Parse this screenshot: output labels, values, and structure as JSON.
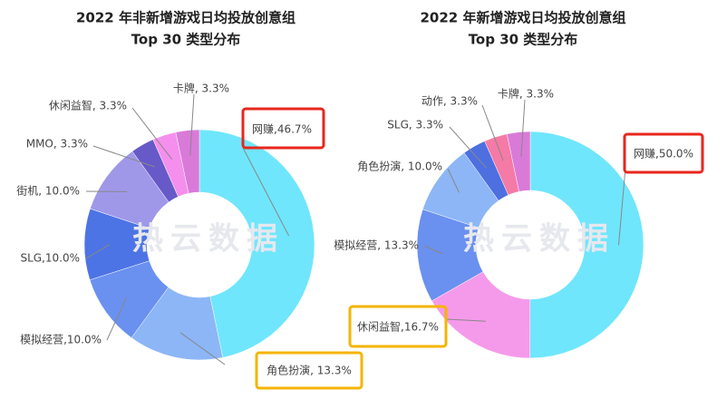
{
  "watermark": "热云数据",
  "chart_data": [
    {
      "type": "pie",
      "donut": true,
      "title": "2022 年非新增游戏日均投放创意组",
      "subtitle": "Top 30 类型分布",
      "labels": [
        "网赚,46.7%",
        "角色扮演, 13.3%",
        "模拟经营,10.0%",
        "SLG,10.0%",
        "街机, 10.0%",
        "MMO, 3.3%",
        "休闲益智, 3.3%",
        "卡牌, 3.3%"
      ],
      "values": [
        46.7,
        13.3,
        10.0,
        10.0,
        10.0,
        3.3,
        3.3,
        3.3
      ],
      "colors": [
        "#6fe6fc",
        "#8cb6f6",
        "#6a90f0",
        "#4d74e4",
        "#9f98e9",
        "#6759c8",
        "#f58fed",
        "#d97ad8"
      ],
      "highlight_colors": [
        "#e8261c",
        "#f5b400",
        null,
        null,
        null,
        null,
        null,
        null
      ]
    },
    {
      "type": "pie",
      "donut": true,
      "title": "2022 年新增游戏日均投放创意组",
      "subtitle": "Top 30 类型分布",
      "labels": [
        "网赚,50.0%",
        "休闲益智,16.7%",
        "模拟经营, 13.3%",
        "角色扮演, 10.0%",
        "SLG, 3.3%",
        "动作, 3.3%",
        "卡牌, 3.3%"
      ],
      "values": [
        50.0,
        16.7,
        13.3,
        10.0,
        3.3,
        3.3,
        3.3
      ],
      "colors": [
        "#6fe6fc",
        "#f59aeb",
        "#6a90f0",
        "#8cb6f6",
        "#4d6fe0",
        "#f57aa6",
        "#d97ad8"
      ],
      "highlight_colors": [
        "#e8261c",
        "#f5b400",
        null,
        null,
        null,
        null,
        null
      ]
    }
  ]
}
